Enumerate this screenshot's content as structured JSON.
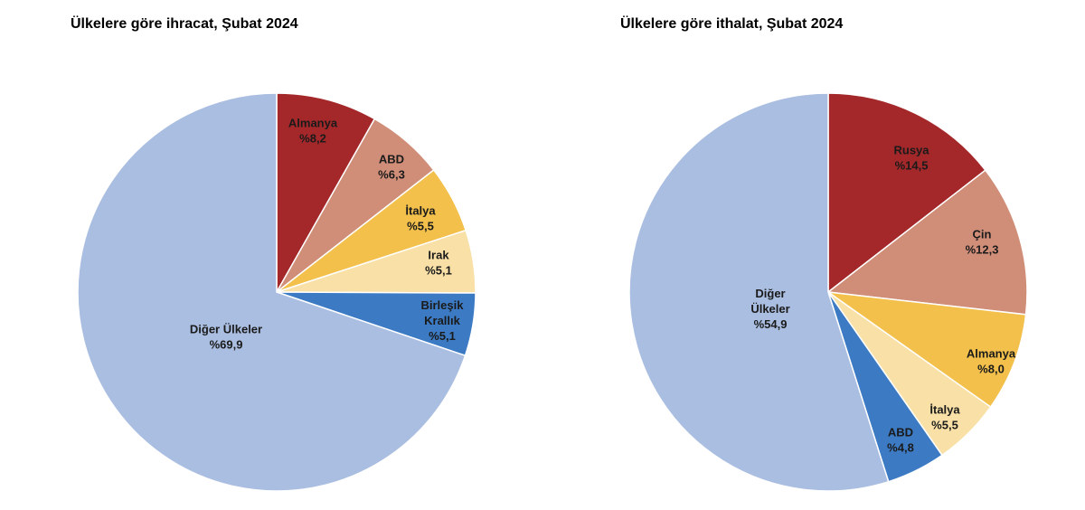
{
  "chart_data": [
    {
      "type": "pie",
      "title": "Ülkelere göre ihracat, Şubat 2024",
      "slices": [
        {
          "label": "Almanya",
          "value": 8.2,
          "value_label": "%8,2",
          "color": "#a4282a"
        },
        {
          "label": "ABD",
          "value": 6.3,
          "value_label": "%6,3",
          "color": "#d08e78"
        },
        {
          "label": "İtalya",
          "value": 5.5,
          "value_label": "%5,5",
          "color": "#f2c04b"
        },
        {
          "label": "Irak",
          "value": 5.1,
          "value_label": "%5,1",
          "color": "#f8e0a6"
        },
        {
          "label": "Birleşik Krallık",
          "value": 5.1,
          "value_label": "%5,1",
          "color": "#3c7bc4"
        },
        {
          "label": "Diğer Ülkeler",
          "value": 69.9,
          "value_label": "%69,9",
          "color": "#aabee1"
        }
      ]
    },
    {
      "type": "pie",
      "title": "Ülkelere göre ithalat, Şubat 2024",
      "slices": [
        {
          "label": "Rusya",
          "value": 14.5,
          "value_label": "%14,5",
          "color": "#a4282a"
        },
        {
          "label": "Çin",
          "value": 12.3,
          "value_label": "%12,3",
          "color": "#d08e78"
        },
        {
          "label": "Almanya",
          "value": 8.0,
          "value_label": "%8,0",
          "color": "#f2c04b"
        },
        {
          "label": "İtalya",
          "value": 5.5,
          "value_label": "%5,5",
          "color": "#f8e0a6"
        },
        {
          "label": "ABD",
          "value": 4.8,
          "value_label": "%4,8",
          "color": "#3c7bc4"
        },
        {
          "label": "Diğer Ülkeler",
          "value": 54.9,
          "value_label": "%54,9",
          "color": "#aabee1"
        }
      ]
    }
  ]
}
